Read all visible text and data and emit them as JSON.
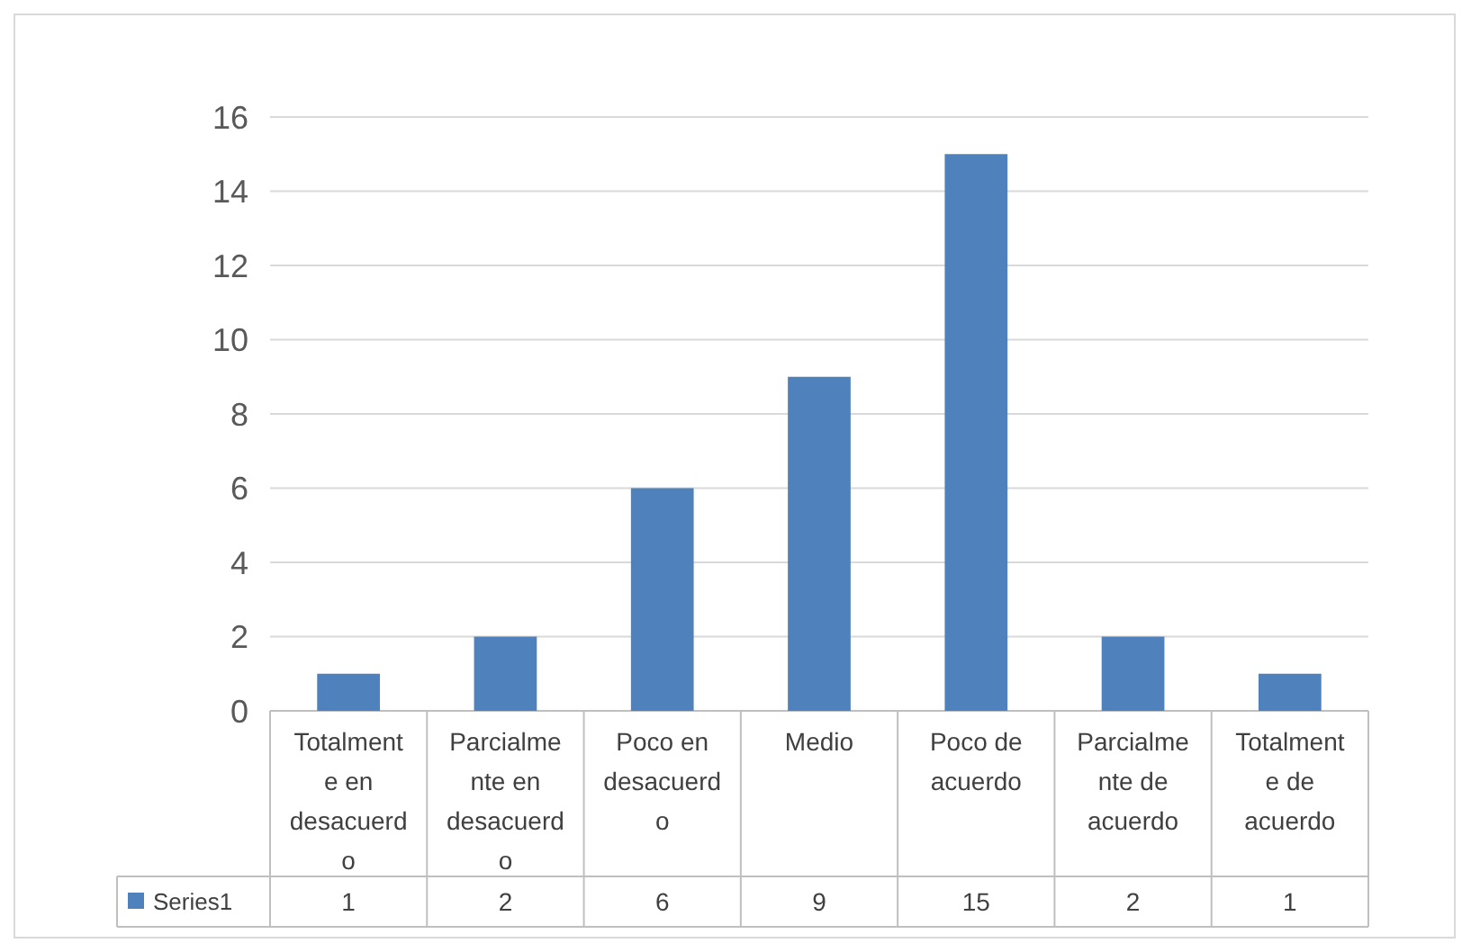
{
  "chart_data": {
    "type": "bar",
    "categories": [
      "Totalmente en desacuerdo",
      "Parcialmente en desacuerdo",
      "Poco en desacuerdo",
      "Medio",
      "Poco de acuerdo",
      "Parcialmente de acuerdo",
      "Totalmente de acuerdo"
    ],
    "series": [
      {
        "name": "Series1",
        "color": "#4f81bd",
        "values": [
          1,
          2,
          6,
          9,
          15,
          2,
          1
        ]
      }
    ],
    "ylim": [
      0,
      16
    ],
    "yticks": [
      0,
      2,
      4,
      6,
      8,
      10,
      12,
      14,
      16
    ],
    "grid": "y",
    "data_labels": true,
    "legend": "bottom"
  }
}
